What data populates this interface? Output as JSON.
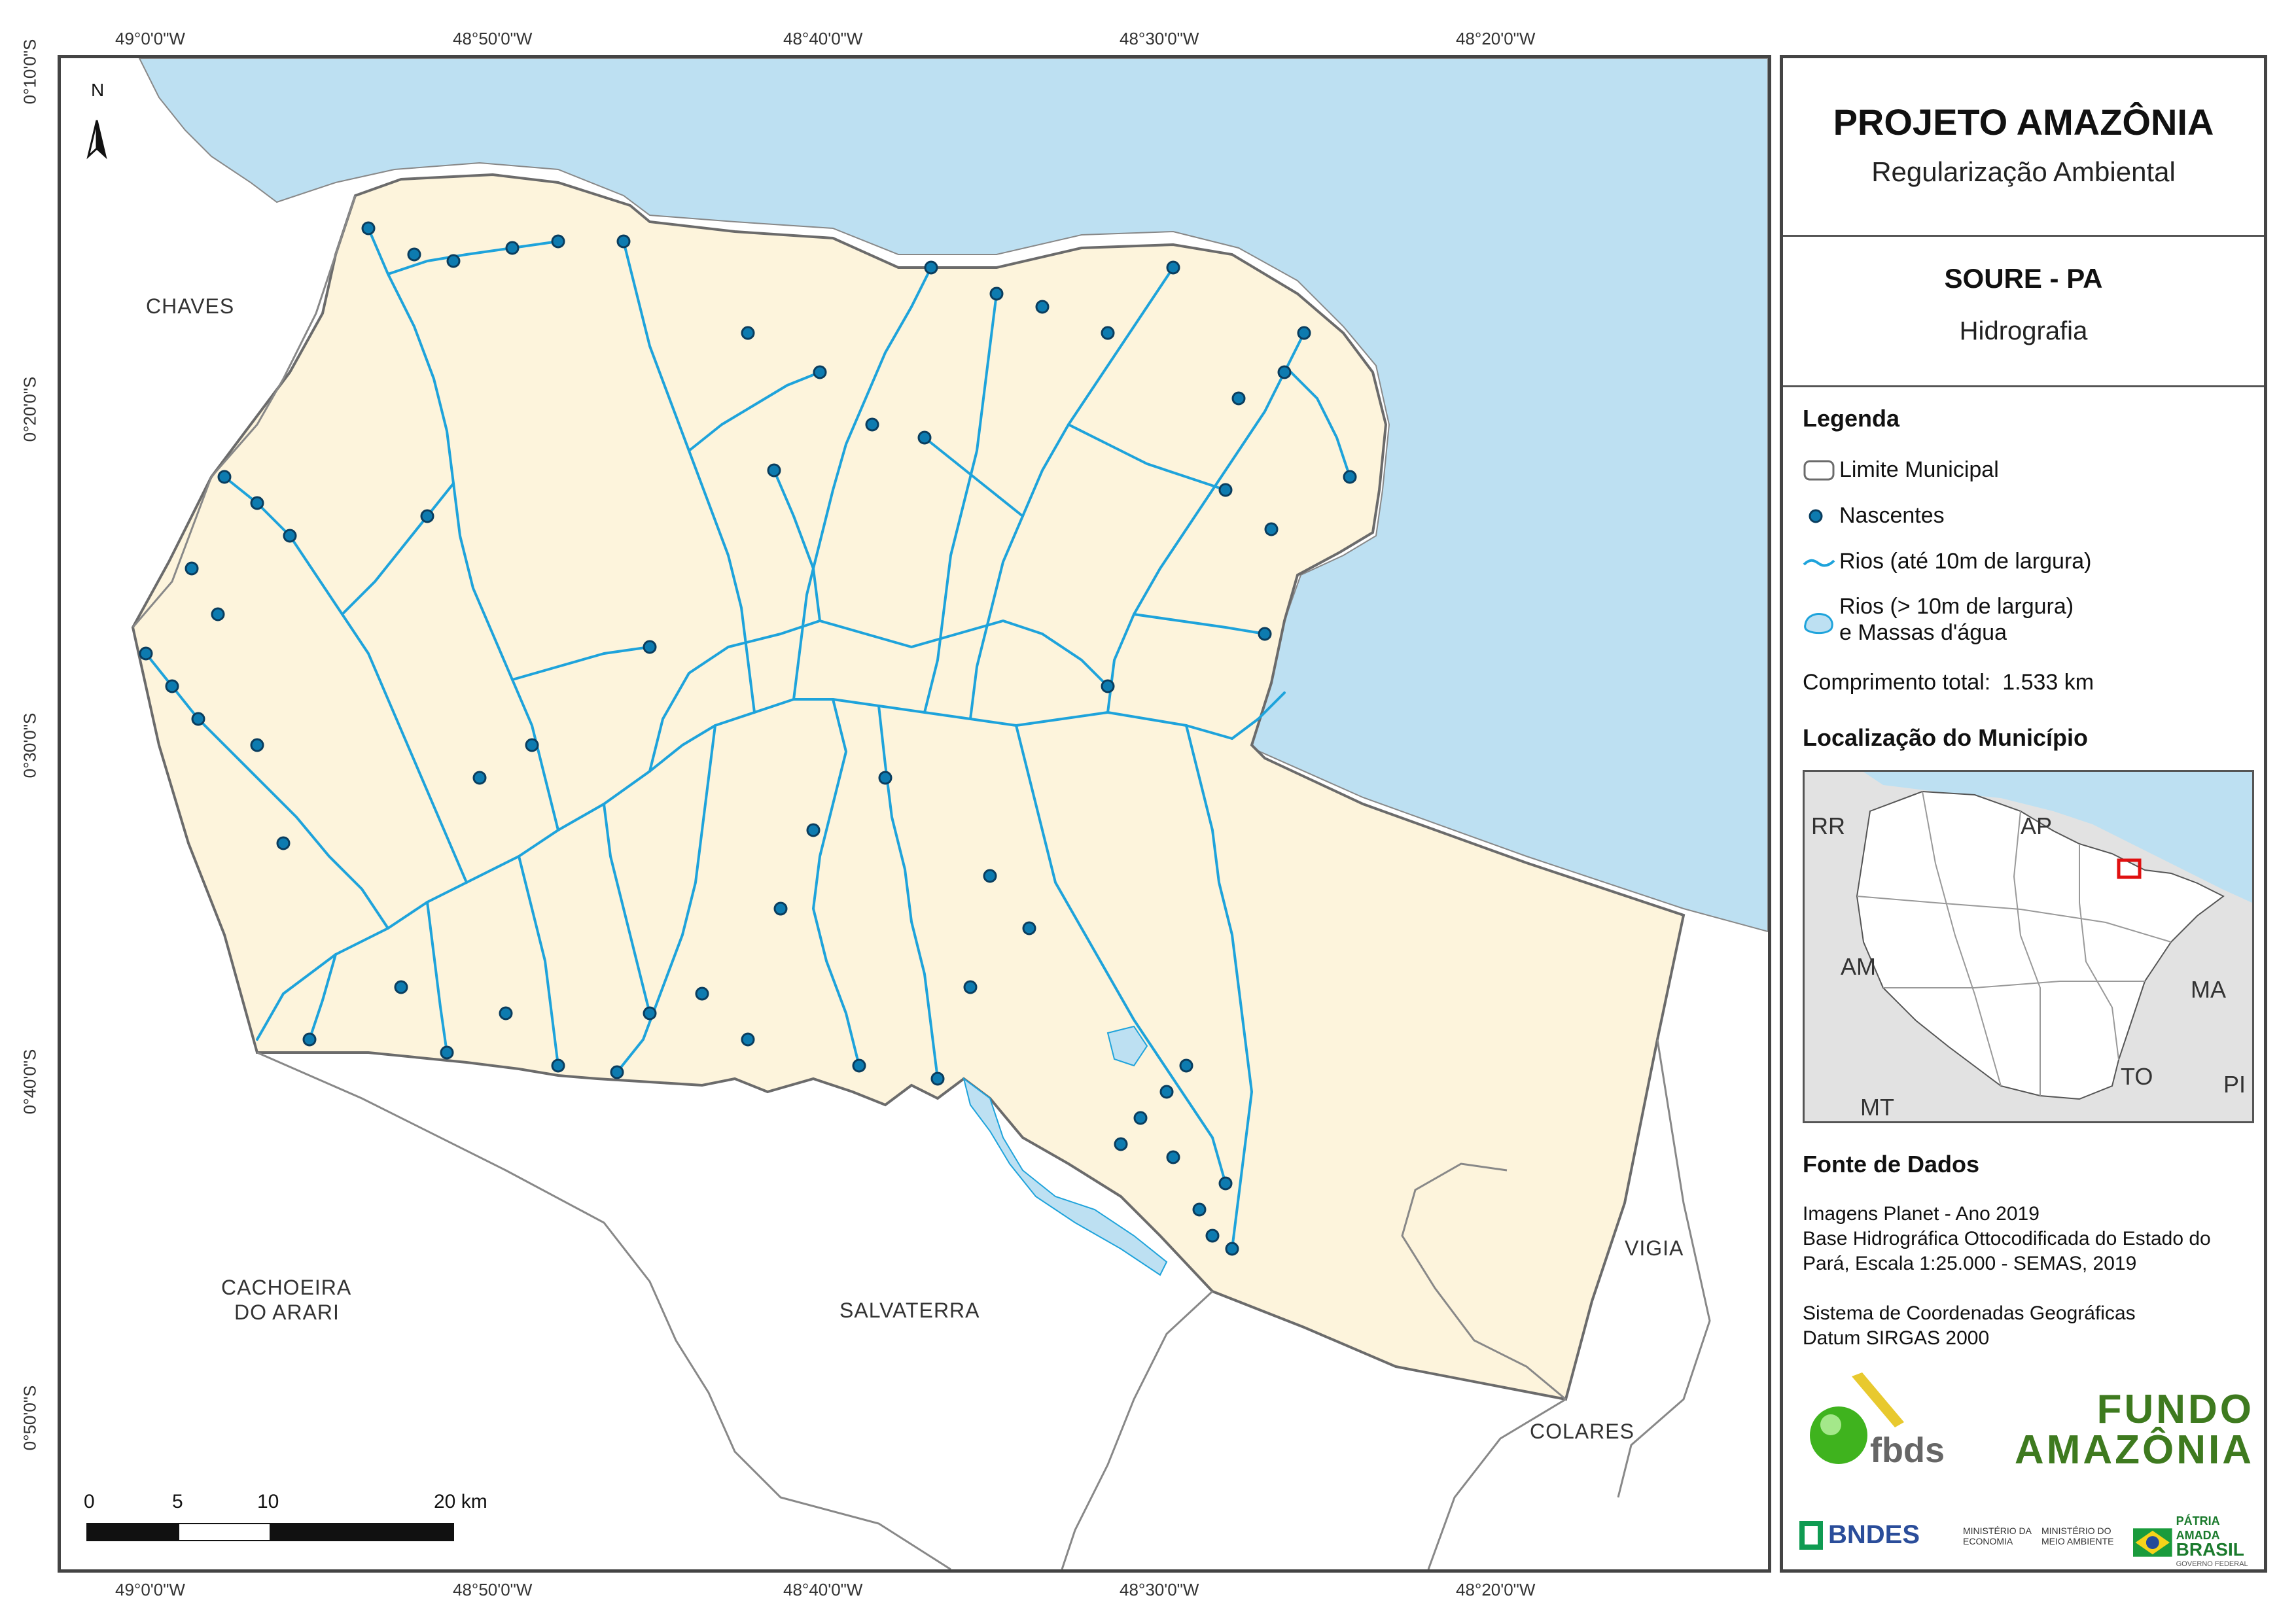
{
  "header": {
    "project_title": "PROJETO AMAZÔNIA",
    "project_subtitle": "Regularização Ambiental",
    "municipality": "SOURE - PA",
    "theme": "Hidrografia"
  },
  "legend": {
    "heading": "Legenda",
    "items": [
      {
        "label": "Limite Municipal",
        "icon": "municipal-boundary-symbol"
      },
      {
        "label": "Nascentes",
        "icon": "spring-point-symbol"
      },
      {
        "label": "Rios (até 10m de largura)",
        "icon": "river-line-symbol"
      },
      {
        "label": "Rios (> 10m de largura)",
        "label2": "e Massas d'água",
        "icon": "water-body-symbol"
      }
    ],
    "total_length_label": "Comprimento total:",
    "total_length_value": "1.533 km"
  },
  "location": {
    "heading": "Localização do Município",
    "labels": [
      "RR",
      "AP",
      "AM",
      "MA",
      "TO",
      "MT",
      "PI"
    ]
  },
  "sources": {
    "heading": "Fonte de Dados",
    "lines": [
      "Imagens Planet - Ano 2019",
      "Base Hidrográfica Ottocodificada do Estado do",
      "Pará, Escala 1:25.000 - SEMAS, 2019",
      "",
      "Sistema de Coordenadas Geográficas",
      "Datum SIRGAS 2000"
    ]
  },
  "logos": {
    "fbds": "fbds",
    "fundo_line1": "FUNDO",
    "fundo_line2": "AMAZÔNIA",
    "bndes": "BNDES",
    "min_economia": "MINISTÉRIO DA ECONOMIA",
    "min_meio_ambiente": "MINISTÉRIO DO MEIO AMBIENTE",
    "patria_amada": "PÁTRIA AMADA",
    "brasil": "BRASIL",
    "governo": "GOVERNO FEDERAL"
  },
  "map": {
    "north_label": "N",
    "longitudes": [
      "49°0'0\"W",
      "48°50'0\"W",
      "48°40'0\"W",
      "48°30'0\"W",
      "48°20'0\"W"
    ],
    "latitudes": [
      "0°10'0\"S",
      "0°20'0\"S",
      "0°30'0\"S",
      "0°40'0\"S",
      "0°50'0\"S"
    ],
    "places": {
      "chaves": "CHAVES",
      "cachoeira_1": "CACHOEIRA",
      "cachoeira_2": "DO ARARI",
      "salvaterra": "SALVATERRA",
      "vigia": "VIGIA",
      "colares": "COLARES"
    },
    "scale_labels": [
      "0",
      "5",
      "10",
      "20 km"
    ],
    "colors": {
      "water": "#bde0f2",
      "land": "#fdf4dc",
      "river": "#1ea3db",
      "spring": "#0d7bb0",
      "boundary": "#6b6b6b"
    }
  }
}
